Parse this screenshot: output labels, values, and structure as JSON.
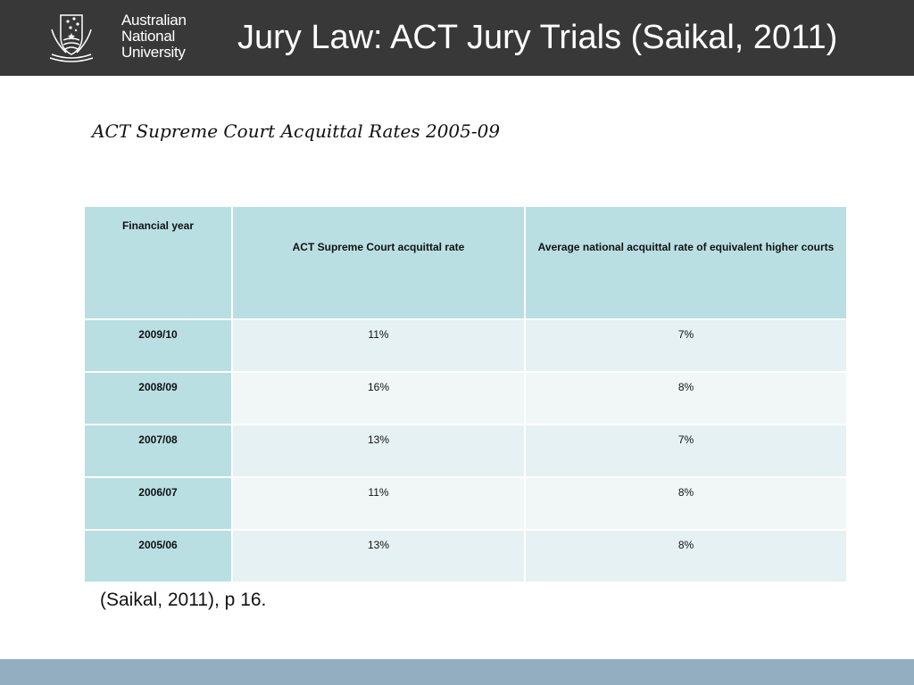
{
  "header": {
    "logo_lines": [
      "Australian",
      "National",
      "University"
    ],
    "title": "Jury Law: ACT Jury Trials (Saikal, 2011)"
  },
  "subtitle": "ACT Supreme Court Acquittal Rates 2005-09",
  "table": {
    "columns": [
      "Financial year",
      "ACT Supreme Court acquittal rate",
      "Average national acquittal rate of equivalent higher courts"
    ],
    "rows": [
      {
        "year": "2009/10",
        "act_rate": "11%",
        "national_rate": "7%"
      },
      {
        "year": "2008/09",
        "act_rate": "16%",
        "national_rate": "8%"
      },
      {
        "year": "2007/08",
        "act_rate": "13%",
        "national_rate": "7%"
      },
      {
        "year": "2006/07",
        "act_rate": "11%",
        "national_rate": "8%"
      },
      {
        "year": "2005/06",
        "act_rate": "13%",
        "national_rate": "8%"
      }
    ]
  },
  "source": "(Saikal, 2011), p 16.",
  "colors": {
    "header_bg": "#383838",
    "table_header_bg": "#b9dfe3",
    "row_odd_bg": "#e5f1f2",
    "row_even_bg": "#f1f7f7",
    "footer_bar": "#93aec0"
  }
}
